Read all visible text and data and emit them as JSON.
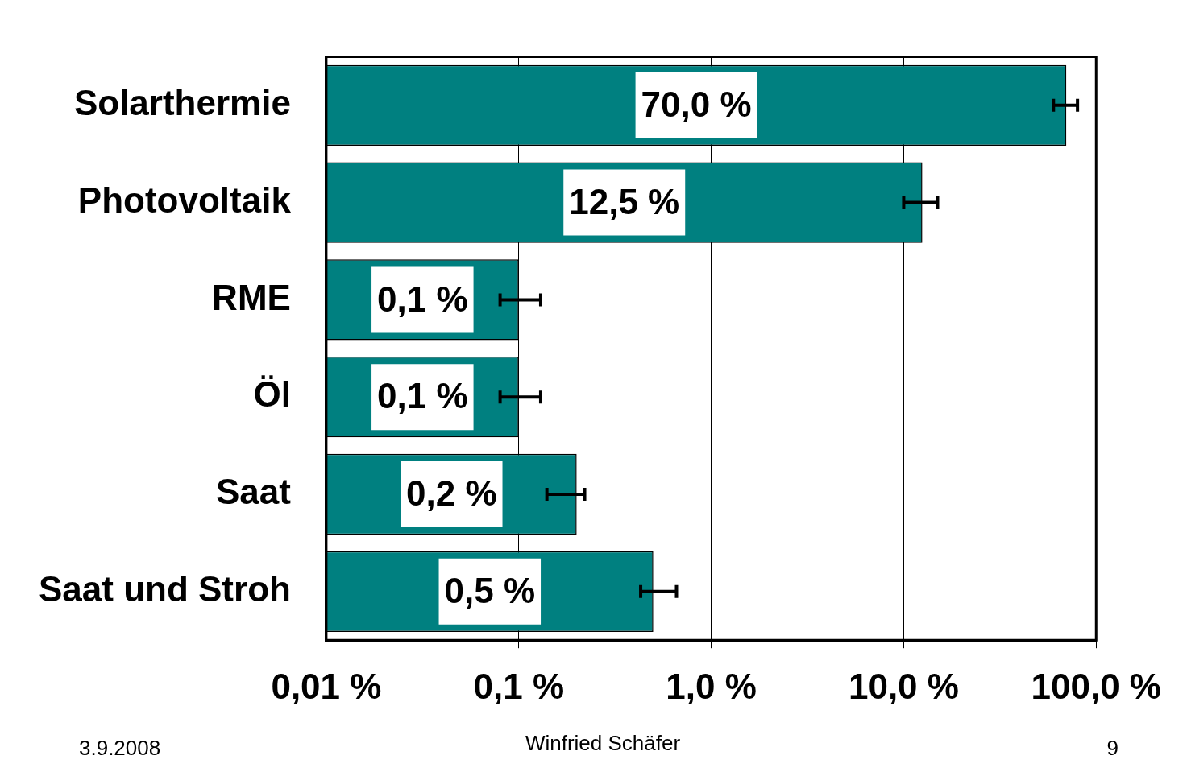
{
  "chart_data": {
    "type": "bar",
    "orientation": "horizontal",
    "categories": [
      "Solarthermie",
      "Photovoltaik",
      "RME",
      "Öl",
      "Saat",
      "Saat und Stroh"
    ],
    "values": [
      70.0,
      12.5,
      0.1,
      0.1,
      0.2,
      0.5
    ],
    "value_labels": [
      "70,0 %",
      "12,5 %",
      "0,1 %",
      "0,1 %",
      "0,2 %",
      "0,5 %"
    ],
    "errors": [
      [
        60,
        80
      ],
      [
        10,
        15
      ],
      [
        0.08,
        0.13
      ],
      [
        0.08,
        0.13
      ],
      [
        0.14,
        0.22
      ],
      [
        0.43,
        0.66
      ]
    ],
    "color": "#008080",
    "log": "x",
    "xlim": [
      0.01,
      100
    ],
    "xticks": [
      {
        "value": 0.01,
        "label": "0,01 %"
      },
      {
        "value": 0.1,
        "label": "0,1 %"
      },
      {
        "value": 1,
        "label": "1,0 %"
      },
      {
        "value": 10,
        "label": "10,0 %"
      },
      {
        "value": 100,
        "label": "100,0 %"
      }
    ],
    "grid": "x",
    "legend": false,
    "annotations": [
      "3.9.2008",
      "Winfried Schäfer",
      "9"
    ]
  }
}
